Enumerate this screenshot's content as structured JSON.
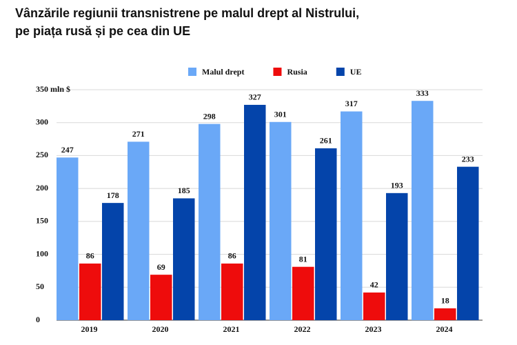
{
  "chart_data": {
    "type": "bar",
    "title": "Vânzările regiunii transnistrene pe malul drept al Nistrului, pe piața rusă și pe cea din UE",
    "categories": [
      "2019",
      "2020",
      "2021",
      "2022",
      "2023",
      "2024"
    ],
    "series": [
      {
        "name": "Malul drept",
        "color": "#6aa8f7",
        "values": [
          247,
          271,
          298,
          301,
          317,
          333
        ]
      },
      {
        "name": "Rusia",
        "color": "#ee0c0c",
        "values": [
          86,
          69,
          86,
          81,
          42,
          18
        ]
      },
      {
        "name": "UE",
        "color": "#0444aa",
        "values": [
          178,
          185,
          327,
          261,
          193,
          233
        ]
      }
    ],
    "ylim": [
      0,
      350
    ],
    "yticks": [
      0,
      50,
      100,
      150,
      200,
      250,
      300,
      {
        "value": 350,
        "label": "350 mln $"
      }
    ],
    "grid": true,
    "legend": "top"
  }
}
